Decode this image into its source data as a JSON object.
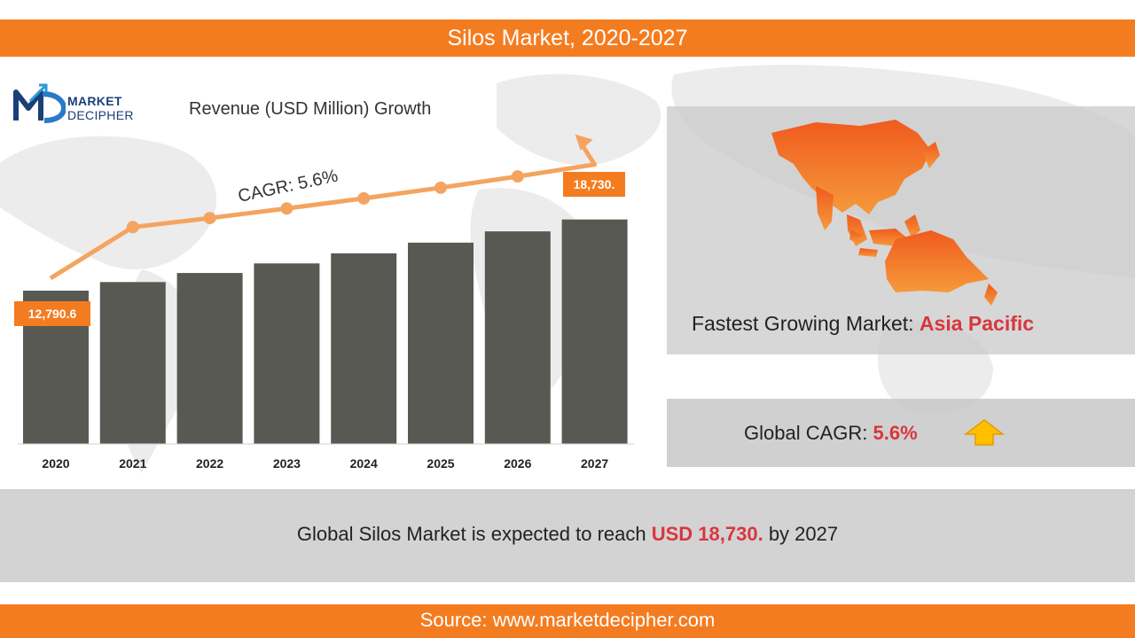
{
  "header": {
    "title": "Silos Market, 2020-2027"
  },
  "logo": {
    "line1": "MARKET",
    "line2": "DECIPHER"
  },
  "chart_data": {
    "type": "bar",
    "title": "Revenue (USD Million) Growth",
    "categories": [
      "2020",
      "2021",
      "2022",
      "2023",
      "2024",
      "2025",
      "2026",
      "2027"
    ],
    "values": [
      12790.6,
      13506.9,
      14263.3,
      15062.0,
      15905.5,
      16796.2,
      17736.8,
      18730.0
    ],
    "trend_annotation": "CAGR: 5.6%",
    "data_labels": {
      "first": "12,790.6",
      "last": "18,730."
    },
    "bar_color": "#595953",
    "trend_color": "#f4a460",
    "label_color": "#f47c20"
  },
  "right": {
    "fastest_label": "Fastest Growing Market: ",
    "fastest_value": "Asia Pacific",
    "cagr_label": "Global CAGR: ",
    "cagr_value": "5.6%"
  },
  "summary": {
    "prefix": "Global Silos Market is expected to reach ",
    "highlight": "USD 18,730.",
    "suffix": " by 2027"
  },
  "footer": {
    "source": "Source: www.marketdecipher.com"
  },
  "colors": {
    "accent": "#f47c20",
    "highlight": "#d9363e"
  },
  "icons": [
    "world-map",
    "asia-pacific-map",
    "up-arrow-icon",
    "logo-icon"
  ]
}
